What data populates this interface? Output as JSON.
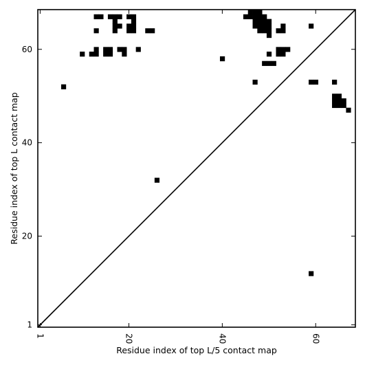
{
  "chart_data": {
    "type": "heatmap",
    "title": "",
    "xlabel": "Residue index of top L/5 contact map",
    "ylabel": "Residue index of top L contact map",
    "xlim": [
      0.5,
      68.5
    ],
    "ylim": [
      0.5,
      68.5
    ],
    "xticks": [
      1,
      20,
      40,
      60
    ],
    "yticks": [
      1,
      20,
      40,
      60
    ],
    "xtick_labels": [
      "1",
      "20",
      "40",
      "60"
    ],
    "ytick_labels": [
      "1",
      "20",
      "40",
      "60"
    ],
    "x_tick_rotation": -90,
    "diagonal": true,
    "grid": false,
    "colors": {
      "contact": "#000000",
      "background": "#ffffff",
      "frame": "#000000"
    },
    "contacts": [
      [
        6,
        52
      ],
      [
        10,
        59
      ],
      [
        12,
        59
      ],
      [
        13,
        59
      ],
      [
        13,
        60
      ],
      [
        13,
        64
      ],
      [
        13,
        67
      ],
      [
        14,
        67
      ],
      [
        16,
        67
      ],
      [
        17,
        67
      ],
      [
        18,
        67
      ],
      [
        17,
        66
      ],
      [
        17,
        65
      ],
      [
        17,
        64
      ],
      [
        15,
        59
      ],
      [
        16,
        59
      ],
      [
        15,
        60
      ],
      [
        16,
        60
      ],
      [
        18,
        60
      ],
      [
        19,
        60
      ],
      [
        19,
        59
      ],
      [
        18,
        65
      ],
      [
        20,
        67
      ],
      [
        21,
        67
      ],
      [
        21,
        66
      ],
      [
        20,
        65
      ],
      [
        21,
        65
      ],
      [
        20,
        64
      ],
      [
        21,
        64
      ],
      [
        22,
        60
      ],
      [
        24,
        64
      ],
      [
        25,
        64
      ],
      [
        26,
        32
      ],
      [
        40,
        58
      ],
      [
        45,
        67
      ],
      [
        46,
        67
      ],
      [
        46,
        68
      ],
      [
        47,
        68
      ],
      [
        48,
        68
      ],
      [
        47,
        67
      ],
      [
        48,
        67
      ],
      [
        49,
        67
      ],
      [
        47,
        66
      ],
      [
        48,
        66
      ],
      [
        49,
        66
      ],
      [
        50,
        66
      ],
      [
        47,
        65
      ],
      [
        48,
        65
      ],
      [
        49,
        65
      ],
      [
        50,
        65
      ],
      [
        48,
        64
      ],
      [
        49,
        64
      ],
      [
        50,
        64
      ],
      [
        50,
        63
      ],
      [
        47,
        53
      ],
      [
        49,
        57
      ],
      [
        50,
        57
      ],
      [
        51,
        57
      ],
      [
        50,
        59
      ],
      [
        52,
        60
      ],
      [
        53,
        60
      ],
      [
        54,
        60
      ],
      [
        52,
        59
      ],
      [
        53,
        59
      ],
      [
        52,
        64
      ],
      [
        53,
        64
      ],
      [
        53,
        65
      ],
      [
        59,
        65
      ],
      [
        59,
        53
      ],
      [
        60,
        53
      ],
      [
        59,
        12
      ],
      [
        64,
        53
      ],
      [
        64,
        50
      ],
      [
        65,
        50
      ],
      [
        64,
        49
      ],
      [
        65,
        49
      ],
      [
        66,
        49
      ],
      [
        64,
        48
      ],
      [
        65,
        48
      ],
      [
        66,
        48
      ],
      [
        67,
        47
      ]
    ]
  }
}
